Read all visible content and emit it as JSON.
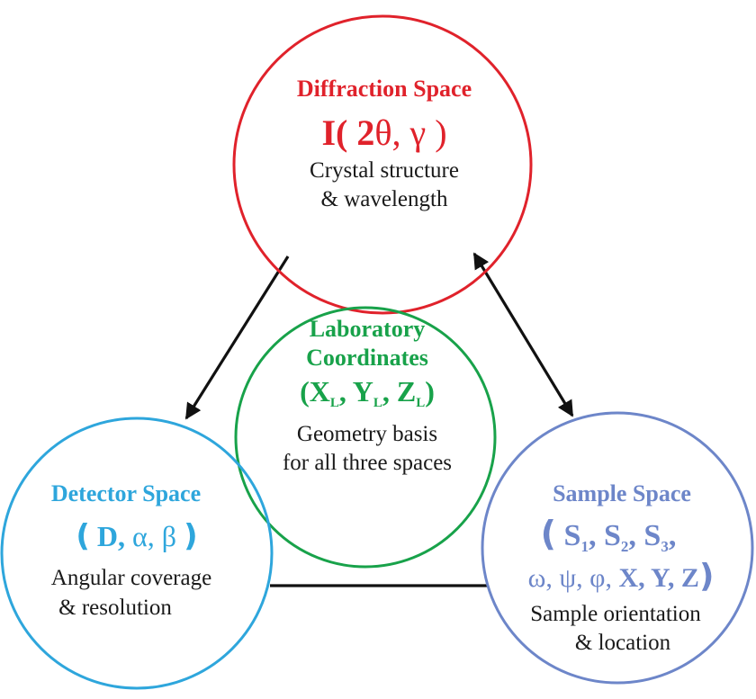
{
  "colors": {
    "diffraction": "#e0222b",
    "laboratory": "#18a24a",
    "detector": "#2ea6dc",
    "sample": "#6d86c9",
    "connector": "#111111"
  },
  "diffraction": {
    "title": "Diffraction Space",
    "formula": {
      "prefix": "I( ",
      "bold_part": "2",
      "rest": "θ, γ )"
    },
    "desc_line1": "Crystal structure",
    "desc_line2": "& wavelength"
  },
  "laboratory": {
    "title_line1": "Laboratory",
    "title_line2": "Coordinates",
    "formula": {
      "open": "(X",
      "sub1": "L",
      "mid1": ", Y",
      "sub2": "L",
      "mid2": ", Z",
      "sub3": "L",
      "close": ")"
    },
    "desc_line1": "Geometry basis",
    "desc_line2": "for all three spaces"
  },
  "detector": {
    "title": "Detector Space",
    "formula": {
      "paren_open": "(",
      "bold_part": " D, ",
      "greek": "α, β ",
      "paren_close": ")"
    },
    "desc_line1": "Angular coverage",
    "desc_line2": "& resolution"
  },
  "sample": {
    "title": "Sample Space",
    "formula_line1": {
      "paren_open": "(",
      "s1": " S",
      "sub1": "1",
      "s2": ", S",
      "sub2": "2",
      "s3": ", S",
      "sub3": "3",
      "tail": ","
    },
    "formula_line2": {
      "greek": "ω, ψ, φ, ",
      "bold": "X, Y, Z",
      "paren_close": ")"
    },
    "desc_line1": "Sample orientation",
    "desc_line2": "& location"
  }
}
